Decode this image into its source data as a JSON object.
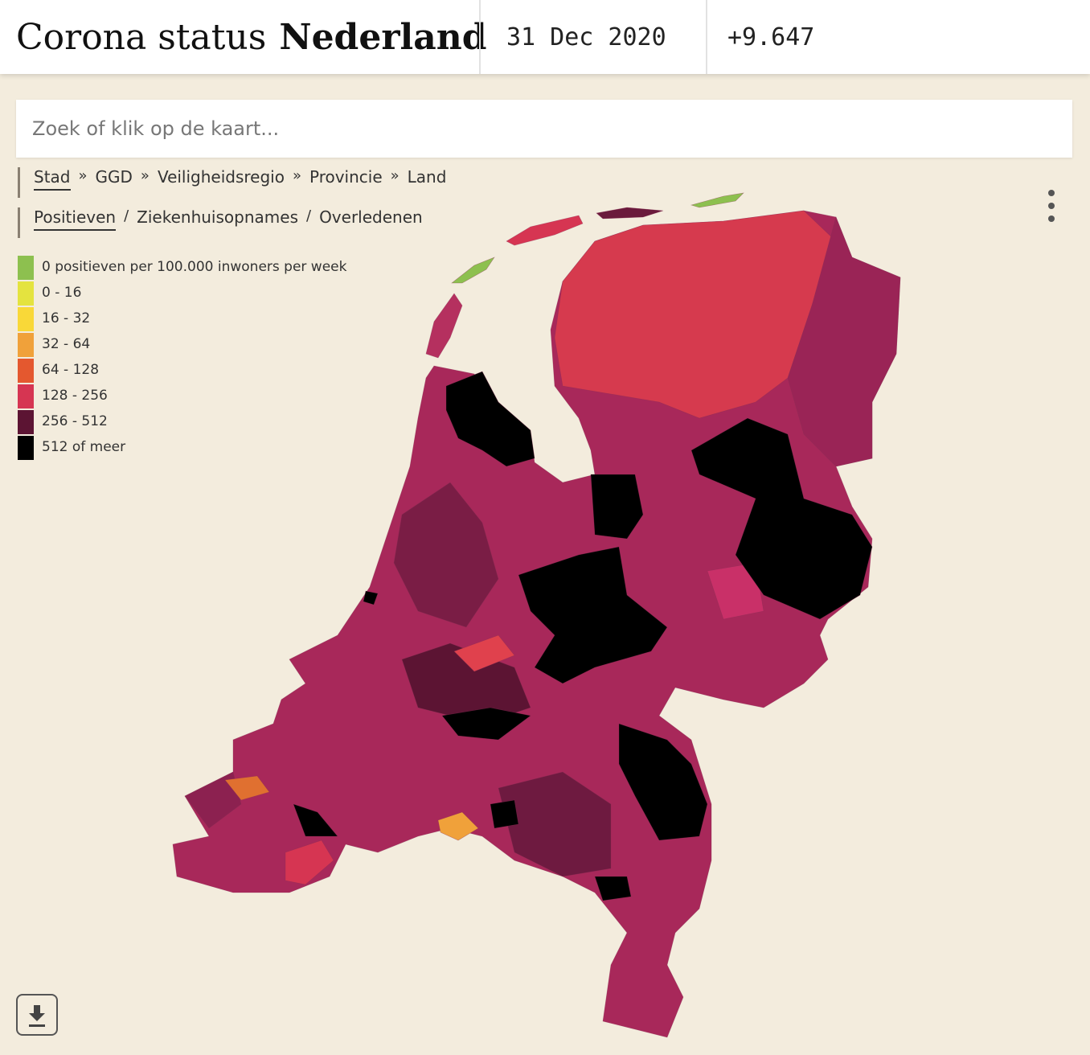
{
  "header": {
    "title": "Corona status",
    "title_bold": "Nederland",
    "date": "31 Dec 2020",
    "count": "+9.647"
  },
  "search": {
    "placeholder": "Zoek of klik op de kaart..."
  },
  "levels": {
    "items": [
      "Stad",
      "GGD",
      "Veiligheidsregio",
      "Provincie",
      "Land"
    ],
    "separator": "»",
    "active": 0
  },
  "metrics": {
    "items": [
      "Positieven",
      "Ziekenhuisopnames",
      "Overledenen"
    ],
    "separator": "/",
    "active": 0
  },
  "legend": [
    {
      "label": "0 positieven per 100.000 inwoners per week",
      "color": "#8dc04f"
    },
    {
      "label": "0 - 16",
      "color": "#e4e33f"
    },
    {
      "label": "16 - 32",
      "color": "#f9d838"
    },
    {
      "label": "32 - 64",
      "color": "#f0a13a"
    },
    {
      "label": "64 - 128",
      "color": "#e4582f"
    },
    {
      "label": "128 - 256",
      "color": "#d63552"
    },
    {
      "label": "256 - 512",
      "color": "#5c1433"
    },
    {
      "label": "512 of meer",
      "color": "#000000"
    }
  ]
}
